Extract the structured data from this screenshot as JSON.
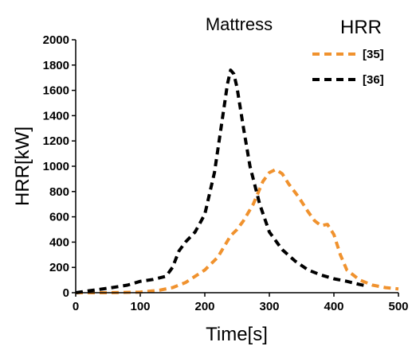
{
  "chart_data": {
    "type": "line",
    "title": "Mattress",
    "xlabel": "Time[s]",
    "ylabel": "HRR[kW]",
    "xlim": [
      0,
      500
    ],
    "ylim": [
      0,
      2000
    ],
    "xticks": [
      0,
      100,
      200,
      300,
      400,
      500
    ],
    "yticks": [
      0,
      200,
      400,
      600,
      800,
      1000,
      1200,
      1400,
      1600,
      1800,
      2000
    ],
    "grid": false,
    "legend": {
      "title": "HRR",
      "position": "top-right"
    },
    "series": [
      {
        "name": "[35]",
        "color": "#f0922e",
        "dash": "dashed",
        "x": [
          0,
          50,
          100,
          130,
          150,
          170,
          200,
          220,
          240,
          250,
          260,
          275,
          290,
          300,
          310,
          320,
          330,
          345,
          360,
          370,
          380,
          390,
          400,
          410,
          420,
          440,
          460,
          480,
          500
        ],
        "y": [
          0,
          0,
          5,
          20,
          40,
          80,
          180,
          280,
          450,
          500,
          570,
          700,
          880,
          950,
          975,
          940,
          860,
          760,
          640,
          570,
          530,
          540,
          460,
          300,
          180,
          100,
          60,
          40,
          30
        ]
      },
      {
        "name": "[36]",
        "color": "#000000",
        "dash": "dashed",
        "x": [
          0,
          20,
          50,
          80,
          100,
          120,
          140,
          150,
          160,
          170,
          185,
          200,
          215,
          225,
          235,
          240,
          245,
          250,
          260,
          270,
          285,
          300,
          320,
          340,
          360,
          380,
          400,
          420,
          440,
          450
        ],
        "y": [
          0,
          15,
          35,
          60,
          90,
          105,
          130,
          200,
          330,
          400,
          480,
          620,
          950,
          1300,
          1650,
          1760,
          1730,
          1620,
          1300,
          1000,
          700,
          480,
          340,
          250,
          180,
          140,
          110,
          90,
          65,
          55
        ]
      }
    ]
  }
}
